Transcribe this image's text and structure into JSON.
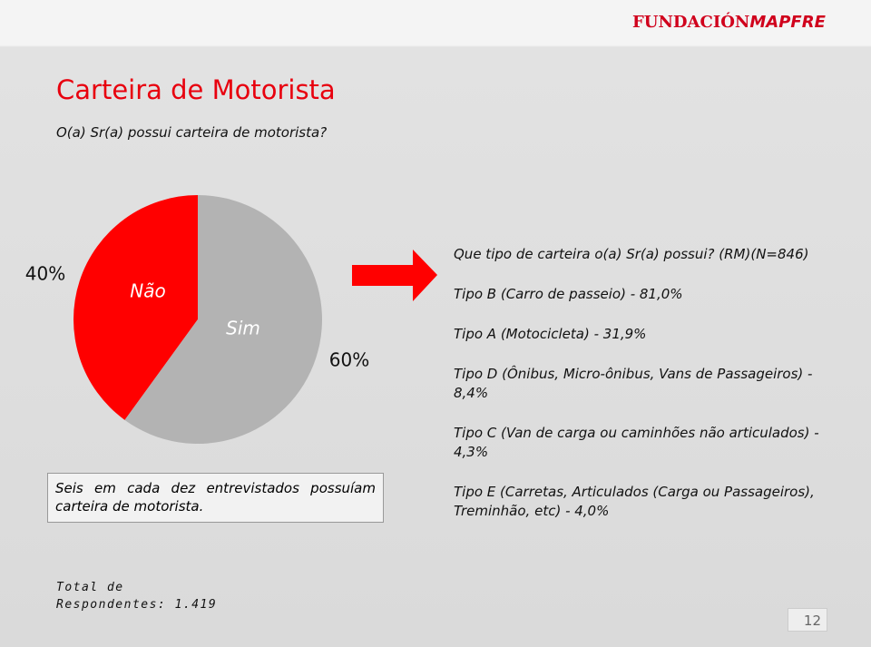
{
  "header": {
    "logo_1": "FUNDACIÓN",
    "logo_2": "MAPFRE"
  },
  "title": "Carteira de Motorista",
  "subtitle": "O(a) Sr(a) possui carteira de motorista?",
  "chart_data": {
    "type": "pie",
    "categories": [
      "Não",
      "Sim"
    ],
    "values": [
      40,
      60
    ],
    "value_labels": [
      "40%",
      "60%"
    ],
    "colors": [
      "#ff0000",
      "#b3b3b3"
    ]
  },
  "types": {
    "title": "Que tipo de carteira o(a) Sr(a) possui? (RM)(N=846)",
    "items": [
      "Tipo B (Carro de passeio) - 81,0%",
      "Tipo A (Motocicleta) - 31,9%",
      "Tipo D (Ônibus, Micro-ônibus, Vans de Passageiros) - 8,4%",
      "Tipo C (Van de carga ou caminhões não articulados) - 4,3%",
      "Tipo E (Carretas, Articulados (Carga ou Passageiros), Treminhão, etc) - 4,0%"
    ]
  },
  "note": "Seis em cada dez entrevistados possuíam carteira de motorista.",
  "footer": {
    "total": "Total de Respondentes: 1.419",
    "page": "12"
  }
}
